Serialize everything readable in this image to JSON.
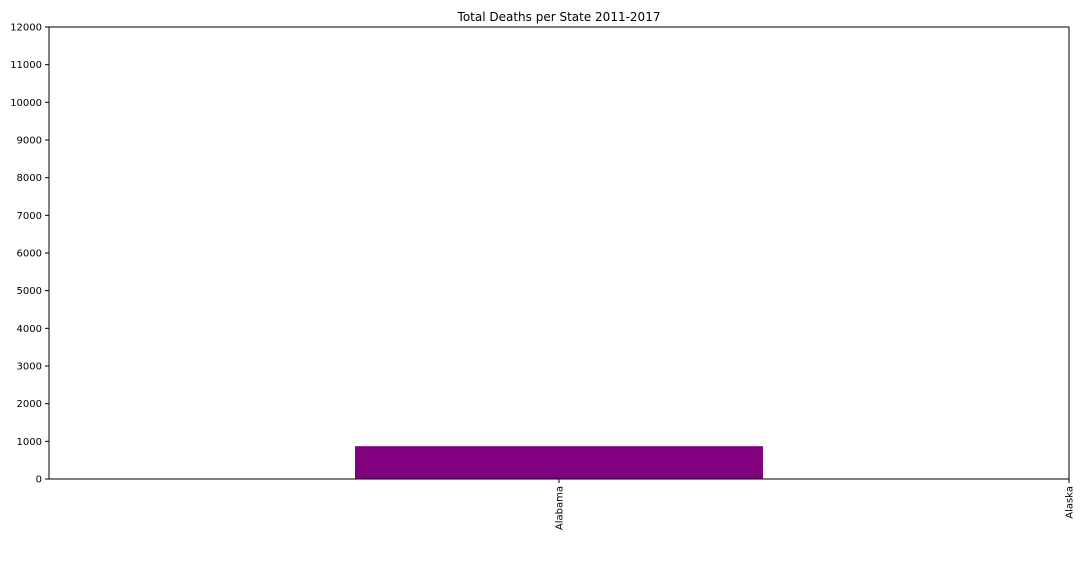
{
  "chart_data": {
    "type": "bar",
    "title": "Total Deaths per State 2011-2017",
    "xlabel": "",
    "ylabel": "",
    "categories": [
      "Alabama",
      "Alaska"
    ],
    "values": [
      870,
      0
    ],
    "ylim": [
      0,
      12000
    ],
    "yticks": [
      0,
      1000,
      2000,
      3000,
      4000,
      5000,
      6000,
      7000,
      8000,
      9000,
      10000,
      11000,
      12000
    ],
    "grid": false,
    "legend": "none",
    "bar_color": "#800080",
    "x_tick_rotation": "vertical"
  }
}
